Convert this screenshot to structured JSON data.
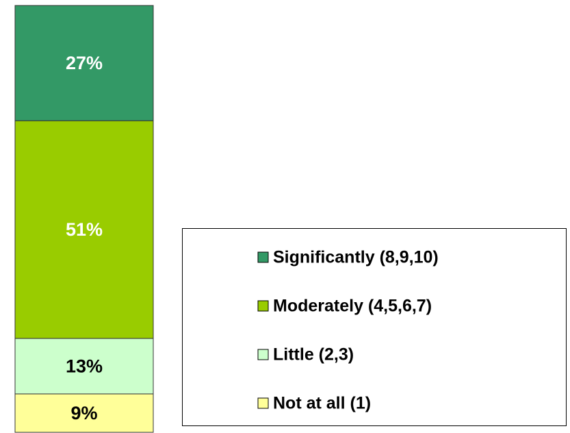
{
  "chart_data": {
    "type": "bar",
    "stacked": true,
    "legend": "lower right",
    "series": [
      {
        "name": "Significantly (8,9,10)",
        "color": "#339966",
        "values": [
          27
        ],
        "value_labels": [
          "27%"
        ]
      },
      {
        "name": "Moderately (4,5,6,7)",
        "color": "#99cc00",
        "values": [
          51
        ],
        "value_labels": [
          "51%"
        ]
      },
      {
        "name": "Little (2,3)",
        "color": "#ccffcc",
        "values": [
          13
        ],
        "value_labels": [
          "13%"
        ]
      },
      {
        "name": "Not at all (1)",
        "color": "#ffff99",
        "values": [
          9
        ],
        "value_labels": [
          "9%"
        ]
      }
    ]
  }
}
